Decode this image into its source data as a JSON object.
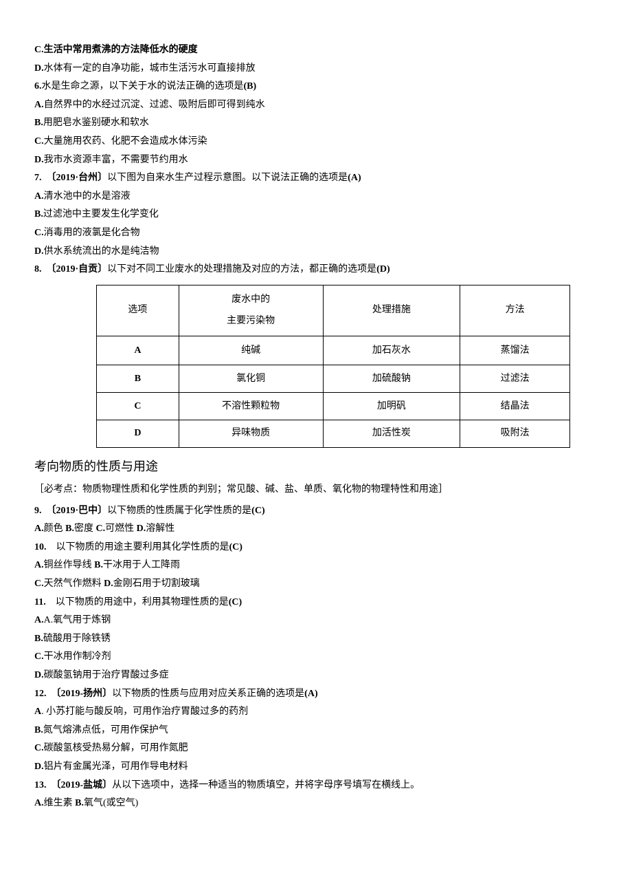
{
  "lines": {
    "l1": "C.生活中常用煮沸的方法降低水的硬度",
    "l2": "D.水体有一定的自净功能，城市生活污水可直接排放",
    "l3a": "6.",
    "l3b": "水是生命之源，以下关于水的说法正确的选项是",
    "l3c": "(B)",
    "l4": "A.自然界中的水经过沉淀、过滤、吸附后即可得到纯水",
    "l5": "B.用肥皂水鉴别硬水和软水",
    "l6": "C.大量施用农药、化肥不会造成水体污染",
    "l7": "D.我市水资源丰富，不需要节约用水",
    "l8a": "7.",
    "l8b": "〔2019·台州〕以下图为自来水生产过程示意图。以下说法正确的选项是",
    "l8c": "(A)",
    "l9": "A.清水池中的水是溶液",
    "l10": "B.过滤池中主要发生化学变化",
    "l11": "C.消毒用的液氯是化合物",
    "l12": "D.供水系统流出的水是纯洁物",
    "l13a": "8.",
    "l13b": "〔2019·自贡〕以下对不同工业废水的处理措施及对应的方法，都正确的选项是",
    "l13c": "(D)"
  },
  "table": {
    "headers": [
      "选项",
      "废水中的\n主要污染物",
      "处理措施",
      "方法"
    ],
    "rows": [
      [
        "A",
        "纯碱",
        "加石灰水",
        "蒸馏法"
      ],
      [
        "B",
        "氯化铜",
        "加硫酸钠",
        "过滤法"
      ],
      [
        "C",
        "不溶性颗粒物",
        "加明矾",
        "结晶法"
      ],
      [
        "D",
        "异味物质",
        "加活性炭",
        "吸附法"
      ]
    ]
  },
  "section": {
    "title": "考向物质的性质与用途",
    "note": "［必考点：物质物理性质和化学性质的判别；常见酸、碱、盐、单质、氧化物的物理特性和用途］"
  },
  "after": {
    "l14a": "9.",
    "l14b": "〔2019·巴中〕以下物质的性质属于化学性质的是",
    "l14c": "(C)",
    "l15": "A.颜色 B.密度 C.可燃性 D.溶解性",
    "l16a": "10.",
    "l16b": "以下物质的用途主要利用其化学性质的是",
    "l16c": "(C)",
    "l17": "A.铜丝作导线 B.干冰用于人工降雨",
    "l18": "C.天然气作燃料 D.金刚石用于切割玻璃",
    "l19a": "11.",
    "l19b": "以下物质的用途中，利用其物理性质的是",
    "l19c": "(C)",
    "l20": "A.氧气用于炼钢",
    "l21": "B.硫酸用于除铁锈",
    "l22": "C.干冰用作制冷剂",
    "l23": "D.碳酸氢钠用于治疗胃酸过多症",
    "l24a": "12.",
    "l24b": "〔2019-扬州〕以下物质的性质与应用对应关系正确的选项是",
    "l24c": "(A)",
    "l25": "A. 小苏打能与酸反响，可用作治疗胃酸过多的药剂",
    "l26": "B.氮气熔沸点低，可用作保护气",
    "l27": "C.碳酸氢核受热易分解，可用作氮肥",
    "l28": "D.铝片有金属光泽，可用作导电材料",
    "l29a": "13.",
    "l29b": "〔2019-盐城〕从以下选项中，选择一种适当的物质填空，并将字母序号填写在横线上。",
    "l30": "A.维生素 B.氧气(或空气)"
  }
}
